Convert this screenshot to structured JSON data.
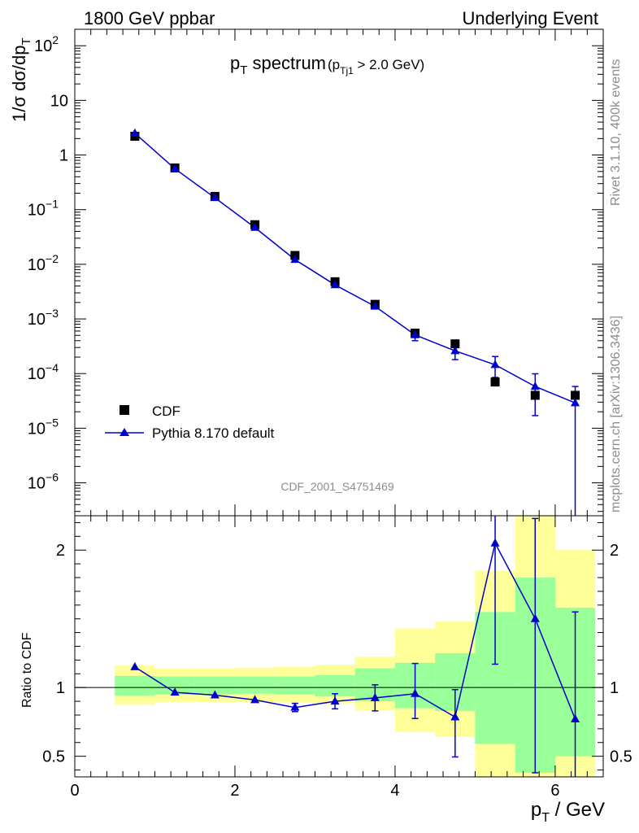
{
  "header": {
    "left": "1800 GeV ppbar",
    "right": "Underlying Event"
  },
  "side_labels": {
    "rivet": "Rivet 3.1.10,  400k events",
    "mcplots": "mcplots.cern.ch [arXiv:1306.3436]"
  },
  "chart_data": [
    {
      "type": "scatter",
      "panel": "main",
      "title": "p_T spectrum",
      "title_main": "p",
      "title_main_sub": "T",
      "title_rest": " spectrum",
      "title_cond": "(p",
      "title_cond_sub": "Tj1",
      "title_cond_rest": " > 2.0 GeV)",
      "ylabel": "1/σ dσ/dp_T",
      "ylabel_main": "1/σ dσ/dp",
      "ylabel_sub": "T",
      "yscale": "log",
      "ylim": [
        2.5e-07,
        200
      ],
      "xlim": [
        0,
        6.6
      ],
      "ytick_labels": [
        {
          "value": 100,
          "base": "10",
          "exp": "2"
        },
        {
          "value": 10,
          "base": "10",
          "exp": ""
        },
        {
          "value": 1,
          "base": "1",
          "exp": ""
        },
        {
          "value": 0.1,
          "base": "10",
          "exp": "−1"
        },
        {
          "value": 0.01,
          "base": "10",
          "exp": "−2"
        },
        {
          "value": 0.001,
          "base": "10",
          "exp": "−3"
        },
        {
          "value": 0.0001,
          "base": "10",
          "exp": "−4"
        },
        {
          "value": 1e-05,
          "base": "10",
          "exp": "−5"
        },
        {
          "value": 1e-06,
          "base": "10",
          "exp": "−6"
        }
      ],
      "x": [
        0.75,
        1.25,
        1.75,
        2.25,
        2.75,
        3.25,
        3.75,
        4.25,
        4.75,
        5.25,
        5.75,
        6.25
      ],
      "x_edges": [
        0.5,
        1.0,
        1.5,
        2.0,
        2.5,
        3.0,
        3.5,
        4.0,
        4.5,
        5.0,
        5.5,
        6.0,
        6.5
      ],
      "series": [
        {
          "name": "CDF",
          "marker": "square",
          "color": "#000000",
          "values": [
            2.2,
            0.58,
            0.175,
            0.053,
            0.0145,
            0.0048,
            0.00185,
            0.00055,
            0.00035,
            7e-05,
            4e-05,
            4e-05
          ]
        },
        {
          "name": "Pythia 8.170 default",
          "marker": "triangle",
          "color": "#0000cc",
          "values": [
            2.5,
            0.56,
            0.165,
            0.047,
            0.0122,
            0.0042,
            0.0017,
            0.00051,
            0.00026,
            0.000145,
            5.8e-05,
            2.9e-05
          ],
          "err_low": [
            0,
            0,
            0,
            0,
            0.0011,
            0.0003,
            0.00012,
            0.00011,
            8e-05,
            6e-05,
            4.1e-05,
            2.9e-05
          ],
          "err_high": [
            0,
            0,
            0,
            0,
            0.0011,
            0.0003,
            0.00012,
            0.00011,
            8e-05,
            6e-05,
            4.1e-05,
            2.9e-05
          ]
        }
      ],
      "legend_position": "bottom-left",
      "watermark": "CDF_2001_S4751469"
    },
    {
      "type": "scatter",
      "panel": "ratio",
      "ylabel": "Ratio to CDF",
      "xlabel": "p_T / GeV",
      "xlabel_main": "p",
      "xlabel_sub": "T",
      "xlabel_rest": " / GeV",
      "ylim": [
        0.35,
        2.25
      ],
      "xlim": [
        0,
        6.6
      ],
      "xticks": [
        0,
        2,
        4,
        6
      ],
      "yticks": [
        0.5,
        1,
        2
      ],
      "reference_line": 1,
      "x_edges": [
        0.5,
        1.0,
        1.5,
        2.0,
        2.5,
        3.0,
        3.5,
        4.0,
        4.5,
        5.0,
        5.5,
        6.0,
        6.5
      ],
      "band_outer": {
        "color": "#ffff99",
        "low": [
          0.875,
          0.895,
          0.895,
          0.895,
          0.89,
          0.885,
          0.835,
          0.675,
          0.64,
          0.33,
          0.33,
          0.33
        ],
        "high": [
          1.16,
          1.14,
          1.14,
          1.145,
          1.15,
          1.165,
          1.225,
          1.43,
          1.48,
          1.85,
          2.3,
          2.0
        ]
      },
      "band_inner": {
        "color": "#99ff99",
        "low": [
          0.94,
          0.95,
          0.95,
          0.955,
          0.95,
          0.935,
          0.9,
          0.85,
          0.83,
          0.59,
          0.38,
          0.5
        ],
        "high": [
          1.085,
          1.08,
          1.08,
          1.08,
          1.08,
          1.09,
          1.14,
          1.18,
          1.25,
          1.55,
          1.8,
          1.58
        ]
      },
      "series": [
        {
          "name": "Pythia 8.170 default",
          "marker": "triangle",
          "color": "#0000cc",
          "x": [
            0.75,
            1.25,
            1.75,
            2.25,
            2.75,
            3.25,
            3.75,
            4.25,
            4.75,
            5.25,
            5.75,
            6.25
          ],
          "values": [
            1.15,
            0.965,
            0.945,
            0.91,
            0.855,
            0.9,
            0.925,
            0.955,
            0.785,
            2.05,
            1.5,
            0.77
          ],
          "err_low": [
            0,
            0,
            0,
            0,
            0.03,
            0.055,
            0.095,
            0.18,
            0.29,
            0.88,
            1.12,
            0.77
          ],
          "err_high": [
            0,
            0,
            0,
            0,
            0.03,
            0.055,
            0.095,
            0.22,
            0.2,
            0.2,
            0.73,
            0.78
          ]
        }
      ]
    }
  ]
}
